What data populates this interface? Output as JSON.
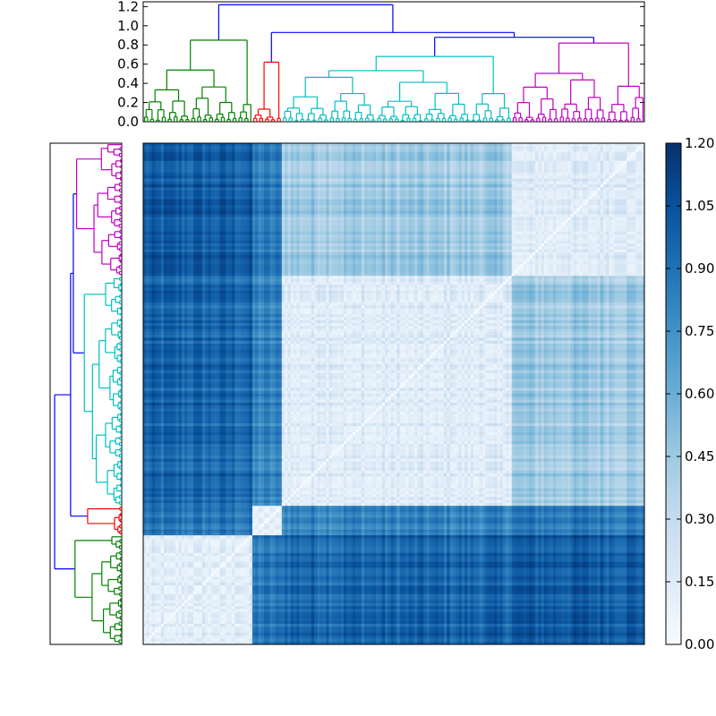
{
  "chart_data": {
    "type": "heatmap",
    "title": "",
    "colormap": "Blues",
    "leaves": 170,
    "clusters": [
      {
        "name": "green",
        "color": "#008000",
        "size": 37
      },
      {
        "name": "red",
        "color": "#ff0000",
        "size": 10
      },
      {
        "name": "cyan",
        "color": "#00bfbf",
        "size": 78
      },
      {
        "name": "magenta",
        "color": "#bf00bf",
        "size": 45
      }
    ],
    "link_color": "#0000ff",
    "cluster_heights": [
      0.85,
      0.62,
      0.68,
      0.82
    ],
    "merge_heights": {
      "cyan_magenta": 0.88,
      "red_cm": 0.93,
      "root": 1.22
    },
    "within_cluster_distance": [
      0.05,
      0.04,
      0.06,
      0.07
    ],
    "dendrogram_axis": {
      "ylim": [
        0,
        1.25
      ],
      "ticks": [
        0.0,
        0.2,
        0.4,
        0.6,
        0.8,
        1.0,
        1.2
      ],
      "tick_labels": [
        "0.0",
        "0.2",
        "0.4",
        "0.6",
        "0.8",
        "1.0",
        "1.2"
      ]
    },
    "colorbar": {
      "range": [
        0.0,
        1.2
      ],
      "ticks": [
        0.0,
        0.15,
        0.3,
        0.45,
        0.6,
        0.75,
        0.9,
        1.05,
        1.2
      ],
      "tick_labels": [
        "0.00",
        "0.15",
        "0.30",
        "0.45",
        "0.60",
        "0.75",
        "0.90",
        "1.05",
        "1.20"
      ]
    }
  }
}
